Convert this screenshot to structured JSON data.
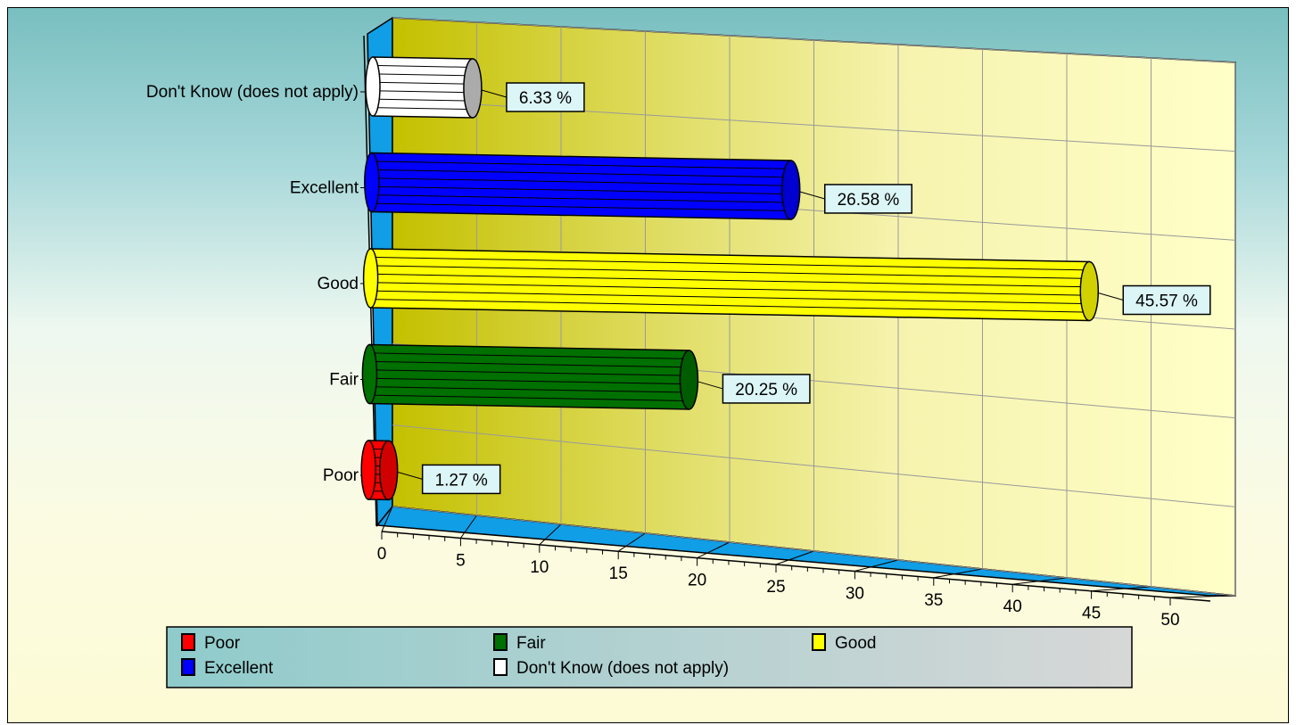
{
  "chart_data": {
    "type": "bar",
    "orientation": "horizontal",
    "categories": [
      "Poor",
      "Fair",
      "Good",
      "Excellent",
      "Don't Know  (does not apply)"
    ],
    "values": [
      1.27,
      20.25,
      45.57,
      26.58,
      6.33
    ],
    "data_labels": [
      "1.27 %",
      "20.25 %",
      "45.57 %",
      "26.58 %",
      "6.33 %"
    ],
    "colors": [
      "#ff0000",
      "#007000",
      "#ffff00",
      "#0000ff",
      "#ffffff"
    ],
    "xlim": [
      0,
      50
    ],
    "x_ticks": [
      "0",
      "5",
      "10",
      "15",
      "20",
      "25",
      "30",
      "35",
      "40",
      "45",
      "50"
    ],
    "title": "",
    "xlabel": "",
    "ylabel": "",
    "grid": true,
    "legend_position": "bottom",
    "legend": [
      {
        "label": "Poor",
        "color": "#ff0000"
      },
      {
        "label": "Fair",
        "color": "#007000"
      },
      {
        "label": "Good",
        "color": "#ffff00"
      },
      {
        "label": "Excellent",
        "color": "#0000ff"
      },
      {
        "label": "Don't Know  (does not apply)",
        "color": "#ffffff"
      }
    ]
  }
}
